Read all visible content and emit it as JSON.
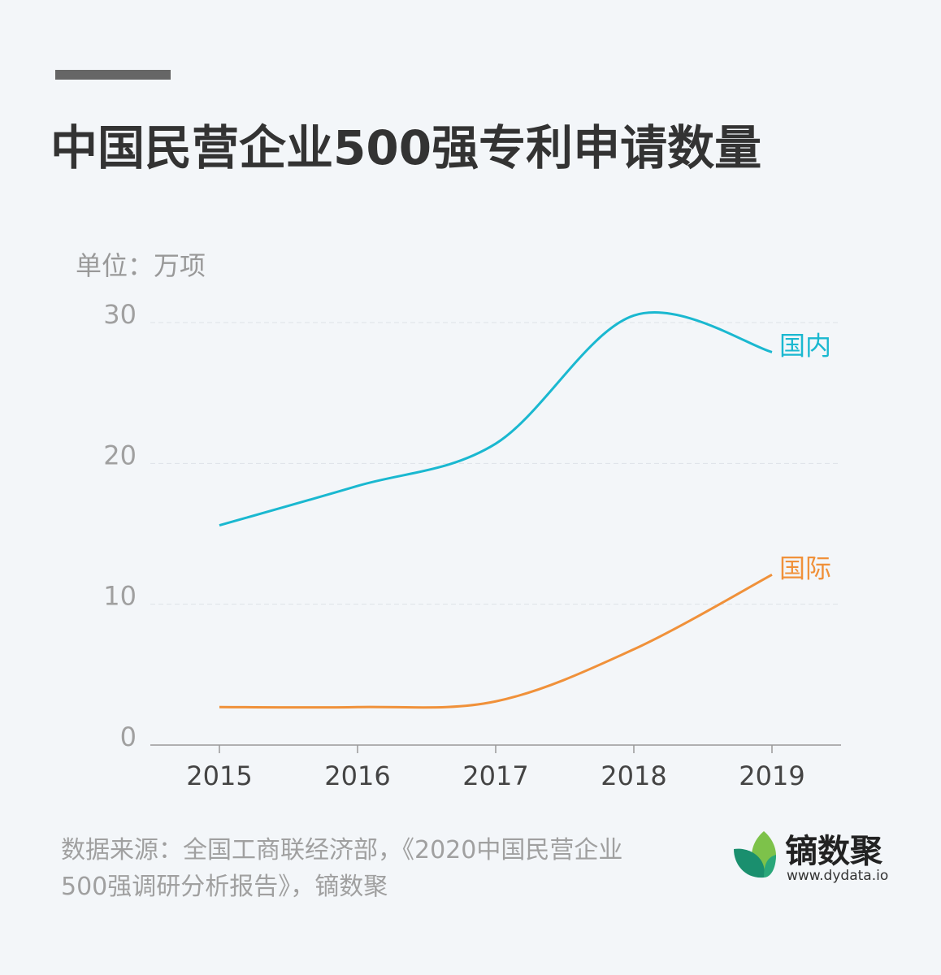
{
  "chart_data": {
    "type": "line",
    "title": "中国民营企业500强专利申请数量",
    "y_label": "单位：万项",
    "categories": [
      "2015",
      "2016",
      "2017",
      "2018",
      "2019"
    ],
    "series": [
      {
        "name": "国内",
        "color": "#1ab8d0",
        "values": [
          15.6,
          18.4,
          21.4,
          30.5,
          27.9
        ]
      },
      {
        "name": "国际",
        "color": "#f0913a",
        "values": [
          2.7,
          2.7,
          3.1,
          6.8,
          12.1
        ]
      }
    ],
    "ylim": [
      0,
      30
    ],
    "yticks": [
      0,
      10,
      20,
      30
    ],
    "grid": true,
    "source": "数据来源：全国工商联经济部，《2020中国民营企业500强调研分析报告》，镝数聚",
    "brand": "镝数聚",
    "brand_url": "www.dydata.io"
  }
}
